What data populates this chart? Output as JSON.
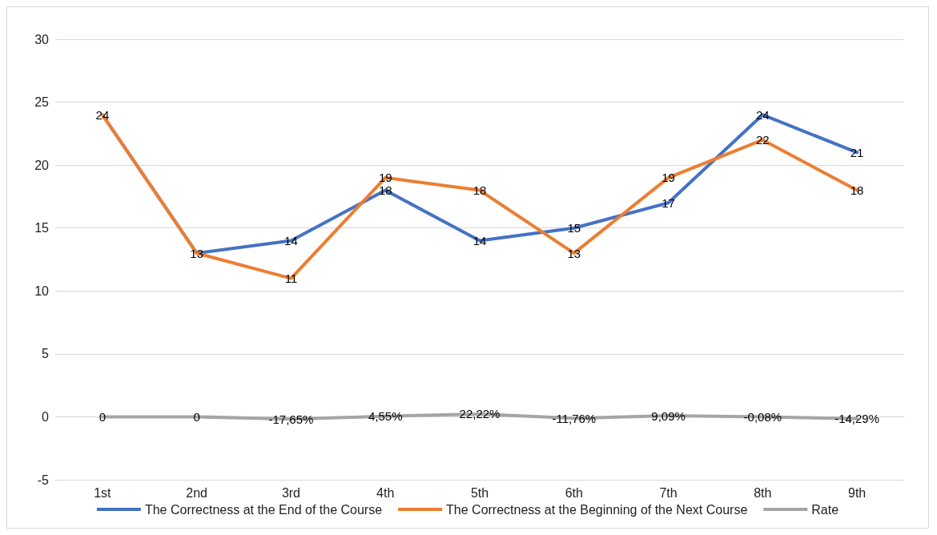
{
  "chart_data": {
    "type": "line",
    "categories": [
      "1st",
      "2nd",
      "3rd",
      "4th",
      "5th",
      "6th",
      "7th",
      "8th",
      "9th"
    ],
    "series": [
      {
        "name": "The Correctness at the End of the Course",
        "color": "#4472c4",
        "values": [
          24,
          13,
          14,
          18,
          14,
          15,
          17,
          24,
          21
        ]
      },
      {
        "name": "The Correctness at the Beginning of the Next Course",
        "color": "#ed7d31",
        "values": [
          24,
          13,
          11,
          19,
          18,
          13,
          19,
          22,
          18
        ],
        "value_labels": [
          null,
          null,
          "11",
          "19",
          "18",
          "13",
          "19",
          "22",
          "18"
        ]
      },
      {
        "name": "Rate",
        "color": "#a5a5a5",
        "values": [
          0,
          0,
          -0.1765,
          0.0455,
          0.2222,
          -0.1176,
          0.0909,
          -0.0008,
          -0.1429
        ],
        "value_labels": [
          "0",
          "0",
          "-17,65%",
          "4,55%",
          "22,22%",
          "-11,76%",
          "9,09%",
          "-0,08%",
          "-14,29%"
        ]
      }
    ],
    "ylim": [
      -5,
      30
    ],
    "yticks": [
      -5,
      0,
      5,
      10,
      15,
      20,
      25,
      30
    ],
    "grid": "y",
    "legend": "bottom",
    "marker": "none",
    "line_style": "solid",
    "data_labels": true
  }
}
